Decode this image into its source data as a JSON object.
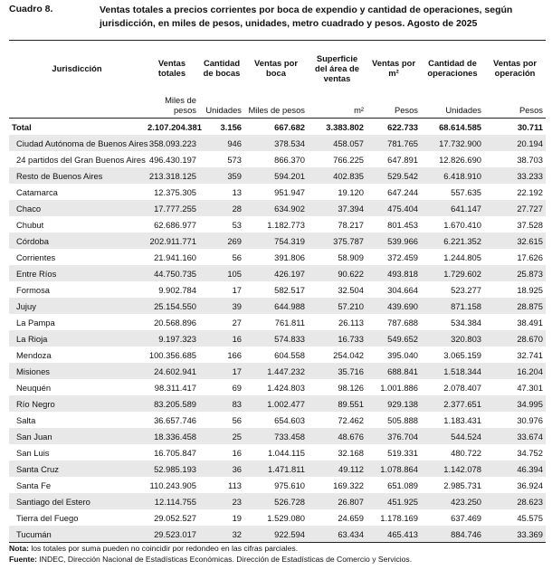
{
  "header": {
    "label": "Cuadro 8.",
    "title": "Ventas totales a precios corrientes por boca de expendio y cantidad de operaciones, según jurisdicción, en miles de pesos, unidades, metro cuadrado y pesos. Agosto de 2025"
  },
  "table": {
    "columns": [
      "Jurisdicción",
      "Ventas totales",
      "Cantidad de bocas",
      "Ventas por boca",
      "Superficie del área de ventas",
      "Ventas por m²",
      "Cantidad de operaciones",
      "Ventas por operación"
    ],
    "units": [
      "Miles de pesos",
      "Unidades",
      "Miles de pesos",
      "m²",
      "Pesos",
      "Unidades",
      "Pesos"
    ],
    "rows": [
      [
        "Total",
        "2.107.204.381",
        "3.156",
        "667.682",
        "3.383.802",
        "622.733",
        "68.614.585",
        "30.711"
      ],
      [
        "Ciudad Autónoma de Buenos Aires",
        "358.093.223",
        "946",
        "378.534",
        "458.057",
        "781.765",
        "17.732.900",
        "20.194"
      ],
      [
        "24 partidos del Gran Buenos Aires",
        "496.430.197",
        "573",
        "866.370",
        "766.225",
        "647.891",
        "12.826.690",
        "38.703"
      ],
      [
        "Resto de Buenos Aires",
        "213.318.125",
        "359",
        "594.201",
        "402.835",
        "529.542",
        "6.418.910",
        "33.233"
      ],
      [
        "Catamarca",
        "12.375.305",
        "13",
        "951.947",
        "19.120",
        "647.244",
        "557.635",
        "22.192"
      ],
      [
        "Chaco",
        "17.777.255",
        "28",
        "634.902",
        "37.394",
        "475.404",
        "641.147",
        "27.727"
      ],
      [
        "Chubut",
        "62.686.977",
        "53",
        "1.182.773",
        "78.217",
        "801.453",
        "1.670.410",
        "37.528"
      ],
      [
        "Córdoba",
        "202.911.771",
        "269",
        "754.319",
        "375.787",
        "539.966",
        "6.221.352",
        "32.615"
      ],
      [
        "Corrientes",
        "21.941.160",
        "56",
        "391.806",
        "58.909",
        "372.459",
        "1.244.805",
        "17.626"
      ],
      [
        "Entre Ríos",
        "44.750.735",
        "105",
        "426.197",
        "90.622",
        "493.818",
        "1.729.602",
        "25.873"
      ],
      [
        "Formosa",
        "9.902.784",
        "17",
        "582.517",
        "32.504",
        "304.664",
        "523.277",
        "18.925"
      ],
      [
        "Jujuy",
        "25.154.550",
        "39",
        "644.988",
        "57.210",
        "439.690",
        "871.158",
        "28.875"
      ],
      [
        "La Pampa",
        "20.568.896",
        "27",
        "761.811",
        "26.113",
        "787.688",
        "534.384",
        "38.491"
      ],
      [
        "La Rioja",
        "9.197.323",
        "16",
        "574.833",
        "16.733",
        "549.652",
        "320.803",
        "28.670"
      ],
      [
        "Mendoza",
        "100.356.685",
        "166",
        "604.558",
        "254.042",
        "395.040",
        "3.065.159",
        "32.741"
      ],
      [
        "Misiones",
        "24.602.941",
        "17",
        "1.447.232",
        "35.716",
        "688.841",
        "1.518.344",
        "16.204"
      ],
      [
        "Neuquén",
        "98.311.417",
        "69",
        "1.424.803",
        "98.126",
        "1.001.886",
        "2.078.407",
        "47.301"
      ],
      [
        "Río Negro",
        "83.205.589",
        "83",
        "1.002.477",
        "89.551",
        "929.138",
        "2.377.651",
        "34.995"
      ],
      [
        "Salta",
        "36.657.746",
        "56",
        "654.603",
        "72.462",
        "505.888",
        "1.183.431",
        "30.976"
      ],
      [
        "San Juan",
        "18.336.458",
        "25",
        "733.458",
        "48.676",
        "376.704",
        "544.524",
        "33.674"
      ],
      [
        "San Luis",
        "16.705.847",
        "16",
        "1.044.115",
        "32.168",
        "519.331",
        "480.722",
        "34.752"
      ],
      [
        "Santa Cruz",
        "52.985.193",
        "36",
        "1.471.811",
        "49.112",
        "1.078.864",
        "1.142.078",
        "46.394"
      ],
      [
        "Santa Fe",
        "110.243.905",
        "113",
        "975.610",
        "169.322",
        "651.089",
        "2.985.731",
        "36.924"
      ],
      [
        "Santiago del Estero",
        "12.114.755",
        "23",
        "526.728",
        "26.807",
        "451.925",
        "423.250",
        "28.623"
      ],
      [
        "Tierra del Fuego",
        "29.052.527",
        "19",
        "1.529.080",
        "24.659",
        "1.178.169",
        "637.469",
        "45.575"
      ],
      [
        "Tucumán",
        "29.523.017",
        "32",
        "922.594",
        "63.434",
        "465.413",
        "884.746",
        "33.369"
      ]
    ]
  },
  "notes": [
    {
      "label": "Nota:",
      "text": " los totales por suma pueden no coincidir por redondeo en las cifras parciales."
    },
    {
      "label": "Fuente:",
      "text": " INDEC, Dirección Nacional de Estadísticas Económicas. Dirección de Estadísticas de Comercio y Servicios."
    }
  ]
}
